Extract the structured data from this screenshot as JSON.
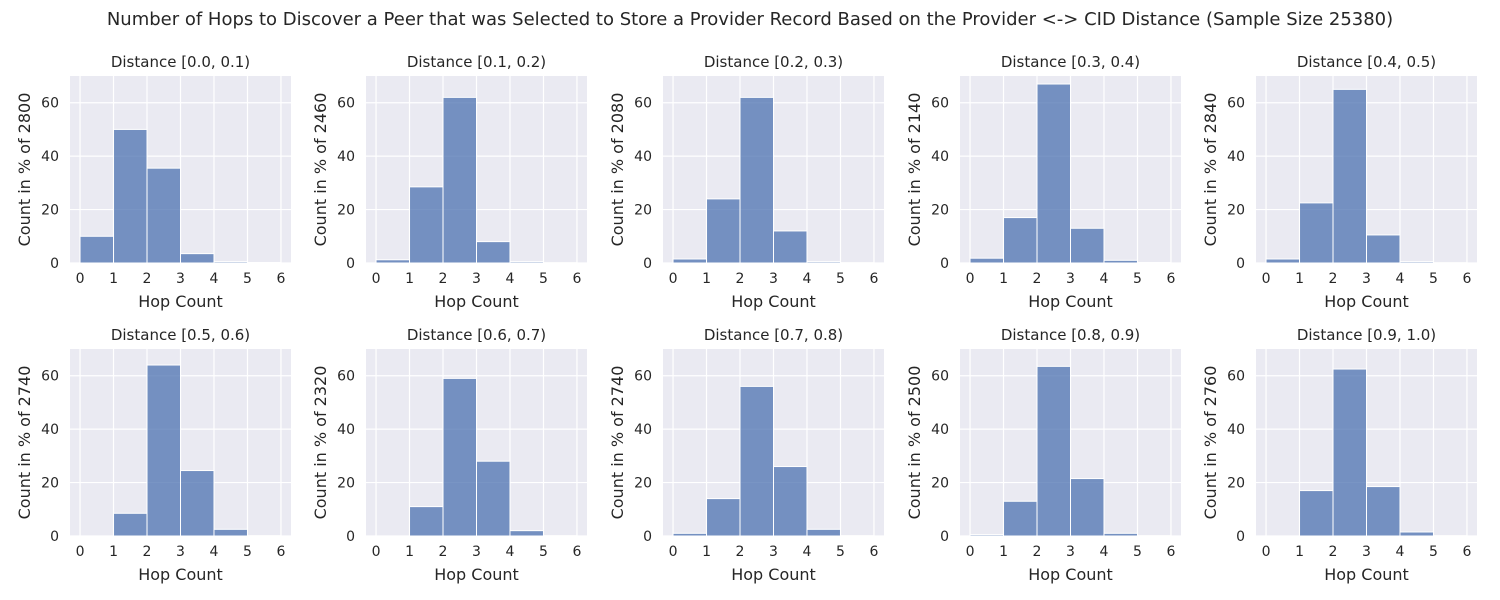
{
  "figure_title": "Number of Hops to Discover a Peer that was Selected to Store a Provider Record Based on the Provider <-> CID Distance (Sample Size 25380)",
  "colors": {
    "bar": "#4c72b0",
    "background": "#eaeaf2",
    "grid": "#ffffff"
  },
  "chart_data": [
    {
      "type": "bar",
      "title": "Distance [0.0, 0.1)",
      "xlabel": "Hop Count",
      "ylabel": "Count in % of 2800",
      "bin_edges": [
        0,
        1,
        2,
        3,
        4,
        5,
        6
      ],
      "values": [
        10,
        50,
        35.5,
        3.5,
        0.5,
        0.2
      ],
      "xlim": [
        -0.3,
        6.3
      ],
      "ylim": [
        0,
        70
      ],
      "xticks": [
        0,
        1,
        2,
        3,
        4,
        5,
        6
      ],
      "yticks": [
        0,
        20,
        40,
        60
      ],
      "grid": true
    },
    {
      "type": "bar",
      "title": "Distance [0.1, 0.2)",
      "xlabel": "Hop Count",
      "ylabel": "Count in % of 2460",
      "bin_edges": [
        0,
        1,
        2,
        3,
        4,
        5,
        6
      ],
      "values": [
        1.2,
        28.5,
        62,
        8,
        0.5,
        0.1
      ],
      "xlim": [
        -0.3,
        6.3
      ],
      "ylim": [
        0,
        70
      ],
      "xticks": [
        0,
        1,
        2,
        3,
        4,
        5,
        6
      ],
      "yticks": [
        0,
        20,
        40,
        60
      ],
      "grid": true
    },
    {
      "type": "bar",
      "title": "Distance [0.2, 0.3)",
      "xlabel": "Hop Count",
      "ylabel": "Count in % of 2080",
      "bin_edges": [
        0,
        1,
        2,
        3,
        4,
        5,
        6
      ],
      "values": [
        1.5,
        24,
        62,
        12,
        0.5,
        0.1
      ],
      "xlim": [
        -0.3,
        6.3
      ],
      "ylim": [
        0,
        70
      ],
      "xticks": [
        0,
        1,
        2,
        3,
        4,
        5,
        6
      ],
      "yticks": [
        0,
        20,
        40,
        60
      ],
      "grid": true
    },
    {
      "type": "bar",
      "title": "Distance [0.3, 0.4)",
      "xlabel": "Hop Count",
      "ylabel": "Count in % of 2140",
      "bin_edges": [
        0,
        1,
        2,
        3,
        4,
        5,
        6
      ],
      "values": [
        1.8,
        17,
        67,
        13,
        1,
        0.2
      ],
      "xlim": [
        -0.3,
        6.3
      ],
      "ylim": [
        0,
        70
      ],
      "xticks": [
        0,
        1,
        2,
        3,
        4,
        5,
        6
      ],
      "yticks": [
        0,
        20,
        40,
        60
      ],
      "grid": true
    },
    {
      "type": "bar",
      "title": "Distance [0.4, 0.5)",
      "xlabel": "Hop Count",
      "ylabel": "Count in % of 2840",
      "bin_edges": [
        0,
        1,
        2,
        3,
        4,
        5,
        6
      ],
      "values": [
        1.5,
        22.5,
        65,
        10.5,
        0.5,
        0.1
      ],
      "xlim": [
        -0.3,
        6.3
      ],
      "ylim": [
        0,
        70
      ],
      "xticks": [
        0,
        1,
        2,
        3,
        4,
        5,
        6
      ],
      "yticks": [
        0,
        20,
        40,
        60
      ],
      "grid": true
    },
    {
      "type": "bar",
      "title": "Distance [0.5, 0.6)",
      "xlabel": "Hop Count",
      "ylabel": "Count in % of 2740",
      "bin_edges": [
        0,
        1,
        2,
        3,
        4,
        5,
        6
      ],
      "values": [
        0,
        8.5,
        64,
        24.5,
        2.5,
        0.1
      ],
      "xlim": [
        -0.3,
        6.3
      ],
      "ylim": [
        0,
        70
      ],
      "xticks": [
        0,
        1,
        2,
        3,
        4,
        5,
        6
      ],
      "yticks": [
        0,
        20,
        40,
        60
      ],
      "grid": true
    },
    {
      "type": "bar",
      "title": "Distance [0.6, 0.7)",
      "xlabel": "Hop Count",
      "ylabel": "Count in % of 2320",
      "bin_edges": [
        0,
        1,
        2,
        3,
        4,
        5,
        6
      ],
      "values": [
        0,
        11,
        59,
        28,
        2,
        0.1
      ],
      "xlim": [
        -0.3,
        6.3
      ],
      "ylim": [
        0,
        70
      ],
      "xticks": [
        0,
        1,
        2,
        3,
        4,
        5,
        6
      ],
      "yticks": [
        0,
        20,
        40,
        60
      ],
      "grid": true
    },
    {
      "type": "bar",
      "title": "Distance [0.7, 0.8)",
      "xlabel": "Hop Count",
      "ylabel": "Count in % of 2740",
      "bin_edges": [
        0,
        1,
        2,
        3,
        4,
        5,
        6
      ],
      "values": [
        1,
        14,
        56,
        26,
        2.5,
        0.1
      ],
      "xlim": [
        -0.3,
        6.3
      ],
      "ylim": [
        0,
        70
      ],
      "xticks": [
        0,
        1,
        2,
        3,
        4,
        5,
        6
      ],
      "yticks": [
        0,
        20,
        40,
        60
      ],
      "grid": true
    },
    {
      "type": "bar",
      "title": "Distance [0.8, 0.9)",
      "xlabel": "Hop Count",
      "ylabel": "Count in % of 2500",
      "bin_edges": [
        0,
        1,
        2,
        3,
        4,
        5,
        6
      ],
      "values": [
        0.5,
        13,
        63.5,
        21.5,
        1,
        0.1
      ],
      "xlim": [
        -0.3,
        6.3
      ],
      "ylim": [
        0,
        70
      ],
      "xticks": [
        0,
        1,
        2,
        3,
        4,
        5,
        6
      ],
      "yticks": [
        0,
        20,
        40,
        60
      ],
      "grid": true
    },
    {
      "type": "bar",
      "title": "Distance [0.9, 1.0)",
      "xlabel": "Hop Count",
      "ylabel": "Count in % of 2760",
      "bin_edges": [
        0,
        1,
        2,
        3,
        4,
        5,
        6
      ],
      "values": [
        0,
        17,
        62.5,
        18.5,
        1.5,
        0.1
      ],
      "xlim": [
        -0.3,
        6.3
      ],
      "ylim": [
        0,
        70
      ],
      "xticks": [
        0,
        1,
        2,
        3,
        4,
        5,
        6
      ],
      "yticks": [
        0,
        20,
        40,
        60
      ],
      "grid": true
    }
  ]
}
